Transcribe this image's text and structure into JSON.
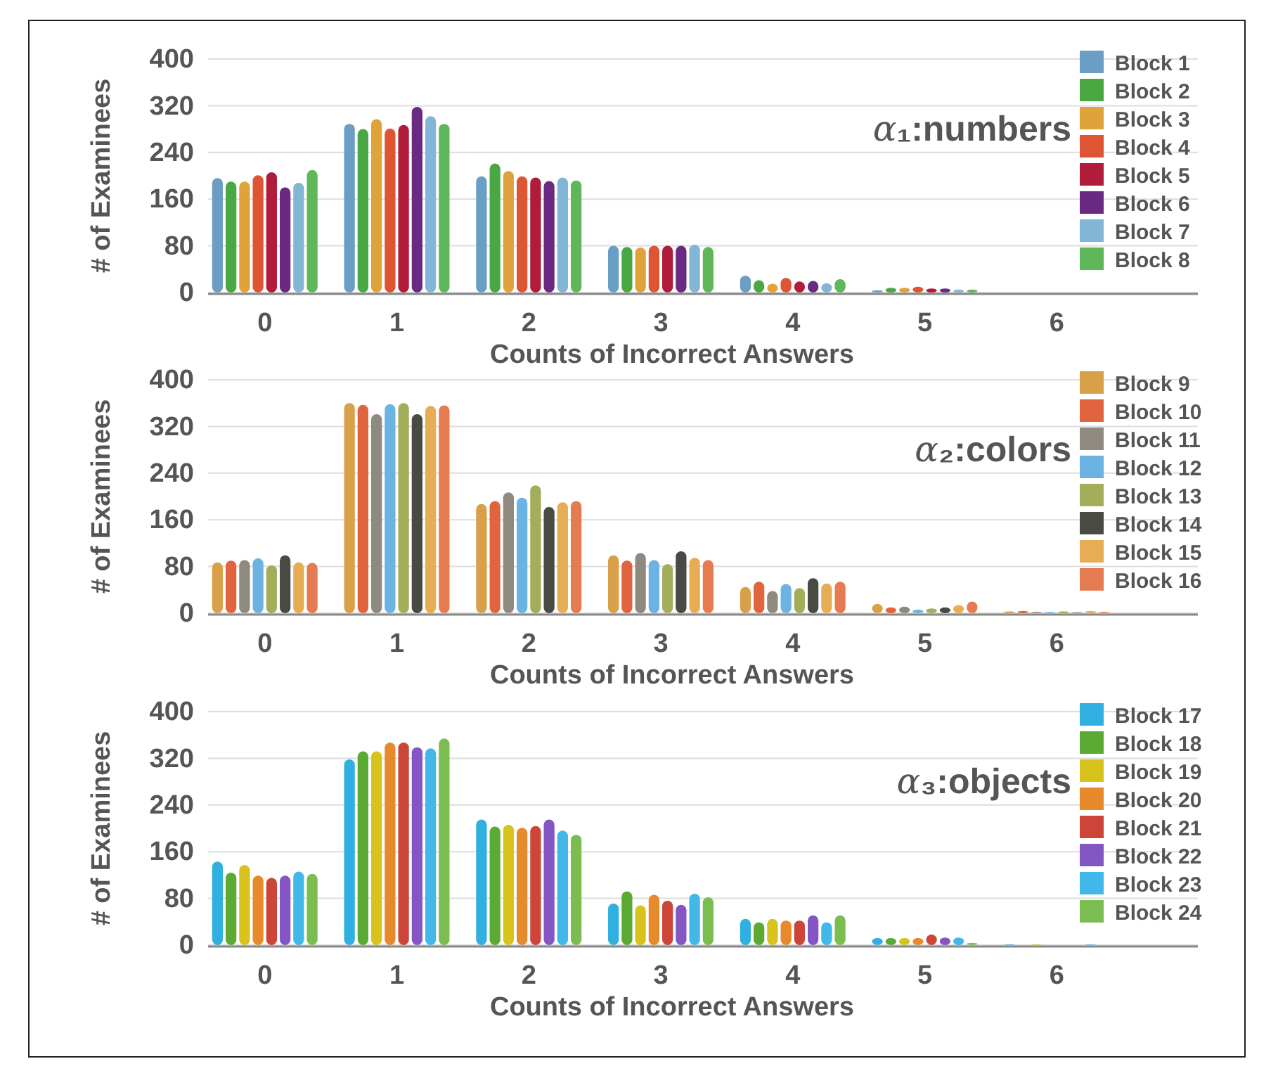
{
  "chart_data": [
    {
      "type": "bar",
      "title": "α₁:numbers",
      "xlabel": "Counts of Incorrect Answers",
      "ylabel": "# of Examinees",
      "categories": [
        "0",
        "1",
        "2",
        "3",
        "4",
        "5",
        "6"
      ],
      "ylim": [
        0,
        400
      ],
      "yticks": [
        0,
        80,
        160,
        240,
        320,
        400
      ],
      "grid": "y",
      "legend": "top right",
      "series": [
        {
          "name": "Block 1",
          "color": "#6a9ec4",
          "values": [
            196,
            289,
            199,
            80,
            29,
            4,
            0
          ]
        },
        {
          "name": "Block 2",
          "color": "#4aa843",
          "values": [
            190,
            280,
            221,
            78,
            21,
            8,
            0
          ]
        },
        {
          "name": "Block 3",
          "color": "#e0a33c",
          "values": [
            190,
            297,
            208,
            77,
            15,
            8,
            0
          ]
        },
        {
          "name": "Block 4",
          "color": "#dd5533",
          "values": [
            201,
            281,
            199,
            80,
            25,
            10,
            0
          ]
        },
        {
          "name": "Block 5",
          "color": "#b01c3a",
          "values": [
            206,
            287,
            197,
            80,
            19,
            7,
            0
          ]
        },
        {
          "name": "Block 6",
          "color": "#6b2a82",
          "values": [
            180,
            318,
            191,
            80,
            20,
            7,
            0
          ]
        },
        {
          "name": "Block 7",
          "color": "#82b6d6",
          "values": [
            188,
            302,
            197,
            82,
            16,
            5,
            0
          ]
        },
        {
          "name": "Block 8",
          "color": "#5eb85a",
          "values": [
            210,
            289,
            192,
            78,
            23,
            5,
            0
          ]
        }
      ]
    },
    {
      "type": "bar",
      "title": "α₂:colors",
      "xlabel": "Counts of Incorrect Answers",
      "ylabel": "# of Examinees",
      "categories": [
        "0",
        "1",
        "2",
        "3",
        "4",
        "5",
        "6"
      ],
      "ylim": [
        0,
        400
      ],
      "yticks": [
        0,
        80,
        160,
        240,
        320,
        400
      ],
      "grid": "y",
      "legend": "top right",
      "series": [
        {
          "name": "Block 9",
          "color": "#d9a04a",
          "values": [
            87,
            360,
            187,
            99,
            45,
            16,
            3
          ]
        },
        {
          "name": "Block 10",
          "color": "#e0643e",
          "values": [
            90,
            357,
            192,
            90,
            54,
            10,
            4
          ]
        },
        {
          "name": "Block 11",
          "color": "#8f8a80",
          "values": [
            91,
            341,
            207,
            103,
            38,
            11,
            2
          ]
        },
        {
          "name": "Block 12",
          "color": "#6bb3e3",
          "values": [
            94,
            358,
            198,
            91,
            50,
            6,
            2
          ]
        },
        {
          "name": "Block 13",
          "color": "#a3ad5a",
          "values": [
            82,
            360,
            219,
            84,
            43,
            8,
            3
          ]
        },
        {
          "name": "Block 14",
          "color": "#4a4a44",
          "values": [
            99,
            341,
            182,
            106,
            60,
            10,
            1
          ]
        },
        {
          "name": "Block 15",
          "color": "#e6ad55",
          "values": [
            87,
            355,
            190,
            95,
            51,
            14,
            4
          ]
        },
        {
          "name": "Block 16",
          "color": "#e57b50",
          "values": [
            86,
            356,
            192,
            91,
            54,
            20,
            2
          ]
        }
      ]
    },
    {
      "type": "bar",
      "title": "α₃:objects",
      "xlabel": "Counts of Incorrect Answers",
      "ylabel": "# of Examinees",
      "categories": [
        "0",
        "1",
        "2",
        "3",
        "4",
        "5",
        "6"
      ],
      "ylim": [
        0,
        400
      ],
      "yticks": [
        0,
        80,
        160,
        240,
        320,
        400
      ],
      "grid": "y",
      "legend": "top right",
      "series": [
        {
          "name": "Block 17",
          "color": "#2fb0e0",
          "values": [
            143,
            318,
            215,
            71,
            45,
            12,
            1
          ]
        },
        {
          "name": "Block 18",
          "color": "#5aaa34",
          "values": [
            124,
            332,
            203,
            92,
            39,
            12,
            0
          ]
        },
        {
          "name": "Block 19",
          "color": "#d8c21c",
          "values": [
            137,
            332,
            206,
            68,
            45,
            12,
            1
          ]
        },
        {
          "name": "Block 20",
          "color": "#e68a2c",
          "values": [
            119,
            347,
            201,
            86,
            42,
            12,
            0
          ]
        },
        {
          "name": "Block 21",
          "color": "#cc4538",
          "values": [
            115,
            347,
            204,
            76,
            42,
            18,
            0
          ]
        },
        {
          "name": "Block 22",
          "color": "#8456c4",
          "values": [
            119,
            339,
            215,
            69,
            51,
            13,
            0
          ]
        },
        {
          "name": "Block 23",
          "color": "#42b8e8",
          "values": [
            126,
            337,
            196,
            88,
            39,
            13,
            1
          ]
        },
        {
          "name": "Block 24",
          "color": "#7cbd52",
          "values": [
            122,
            354,
            189,
            82,
            51,
            4,
            0
          ]
        }
      ]
    }
  ]
}
